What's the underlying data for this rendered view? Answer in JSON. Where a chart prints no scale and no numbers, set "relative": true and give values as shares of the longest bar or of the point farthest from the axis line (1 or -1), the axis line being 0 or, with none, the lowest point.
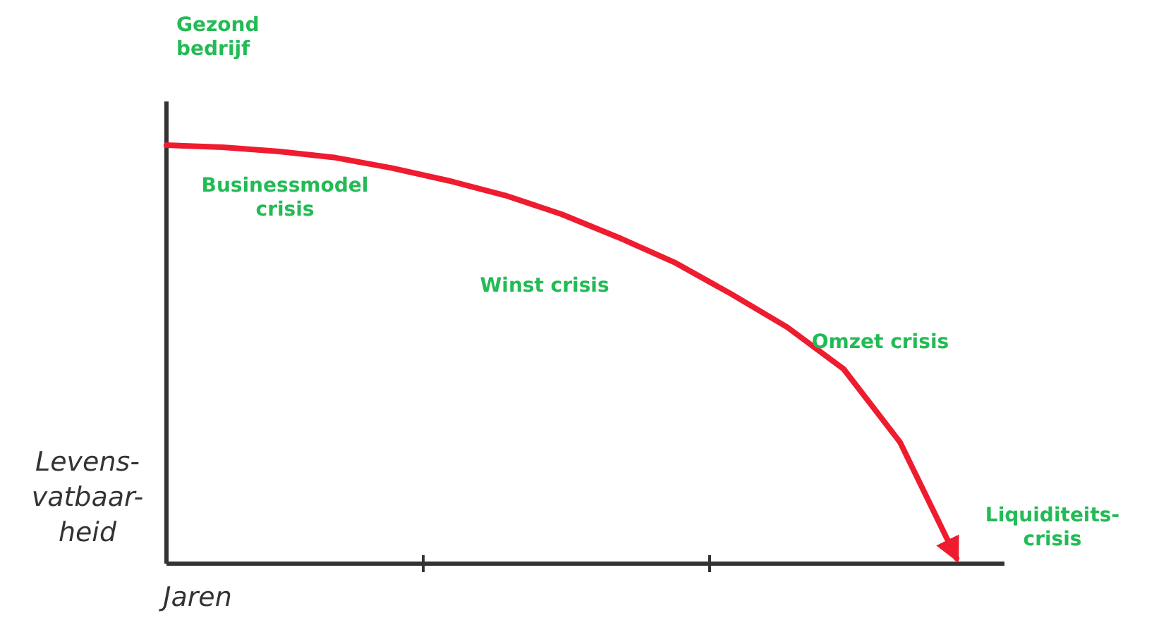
{
  "chart_data": {
    "type": "line",
    "relative": true,
    "xlabel": "Jaren",
    "ylabel": "Levens-vatbaar-heid",
    "categories": [
      null,
      null,
      null,
      null,
      null,
      null,
      null,
      null,
      null,
      null,
      null,
      null,
      null,
      null,
      null
    ],
    "series": [
      {
        "color": "#ee1c2e",
        "values": [
          1,
          0.995,
          0.985,
          0.97,
          0.945,
          0.915,
          0.88,
          0.835,
          0.78,
          0.72,
          0.645,
          0.565,
          0.465,
          0.29,
          0.013
        ]
      }
    ],
    "grid": false,
    "marker": "none",
    "line_style": "solid",
    "annotations": [
      "Gezond bedrijf",
      "Businessmodel crisis",
      "Winst crisis",
      "Omzet crisis",
      "Liquiditeits-crisis"
    ]
  }
}
